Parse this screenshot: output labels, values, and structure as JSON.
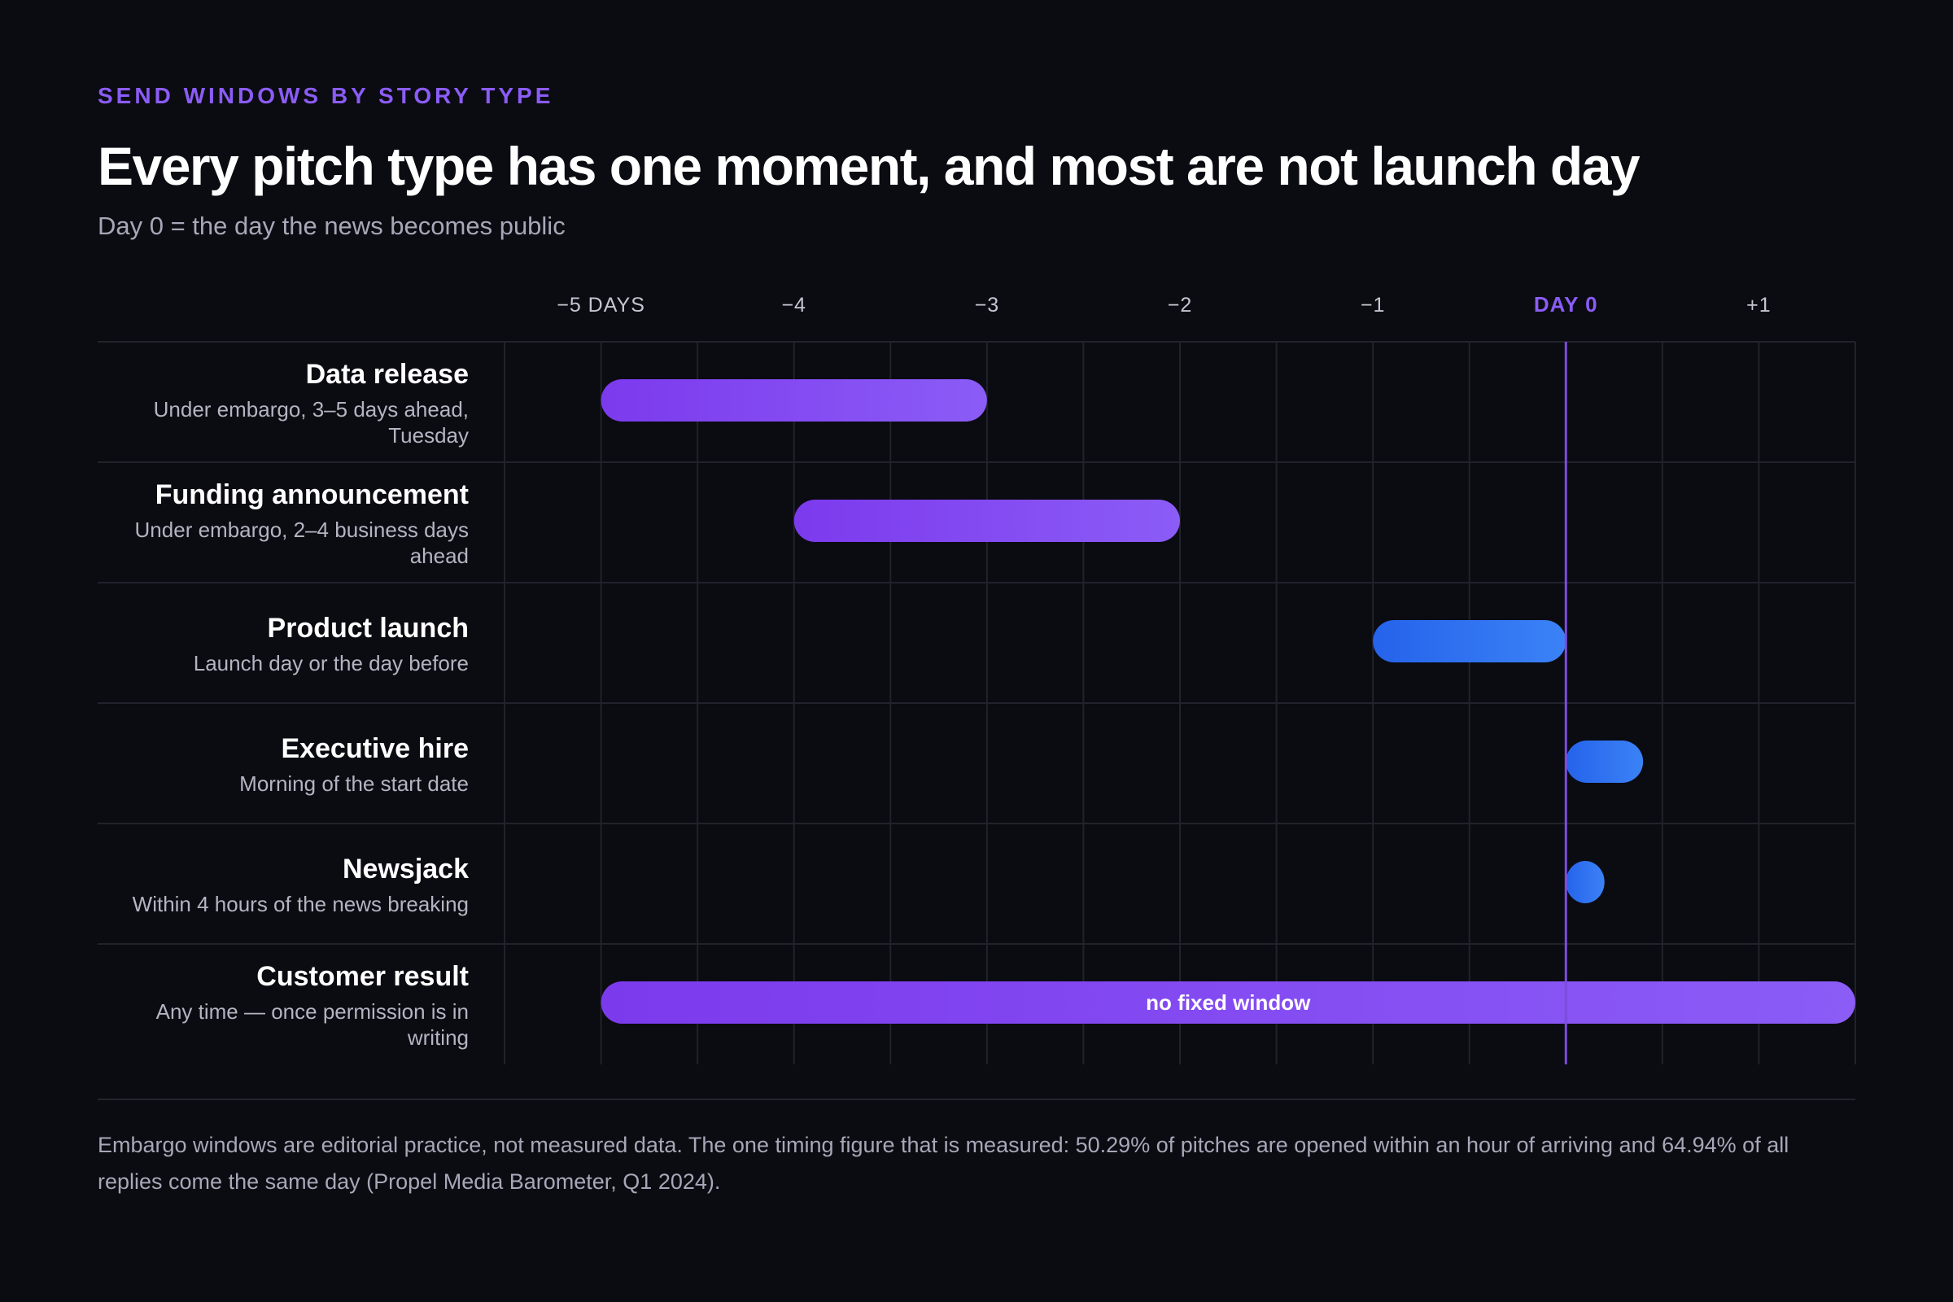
{
  "header": {
    "eyebrow": "SEND WINDOWS BY STORY TYPE",
    "title": "Every pitch type has one moment, and most are not launch day",
    "subtitle": "Day 0 = the day the news becomes public"
  },
  "footnote": "Embargo windows are editorial practice, not measured data. The one timing figure that is measured: 50.29% of pitches are opened within an hour of arriving and 64.94% of all replies come the same day (Propel Media Barometer, Q1 2024).",
  "colors": {
    "purple_start": "#7c3aed",
    "purple_end": "#8b5cf6",
    "blue_start": "#2563eb",
    "blue_end": "#3b82f6",
    "day0_line": "#7c4ddc",
    "accent": "#8b5cf6"
  },
  "chart_data": {
    "type": "bar",
    "orientation": "horizontal-range",
    "xlim": [
      -5.5,
      1.5
    ],
    "ticks": [
      {
        "value": -5,
        "label": "−5 DAYS"
      },
      {
        "value": -4,
        "label": "−4"
      },
      {
        "value": -3,
        "label": "−3"
      },
      {
        "value": -2,
        "label": "−2"
      },
      {
        "value": -1,
        "label": "−1"
      },
      {
        "value": 0,
        "label": "DAY 0"
      },
      {
        "value": 1,
        "label": "+1"
      }
    ],
    "reference_line": {
      "x": 0
    },
    "grid": true,
    "rows": [
      {
        "label": "Data release",
        "sublabel_lines": [
          "Under embargo, 3–5 days ahead,",
          "Tuesday"
        ],
        "start": -5,
        "end": -3,
        "color": "purple",
        "bar_text": ""
      },
      {
        "label": "Funding announcement",
        "sublabel_lines": [
          "Under embargo, 2–4 business days",
          "ahead"
        ],
        "start": -4,
        "end": -2,
        "color": "purple",
        "bar_text": ""
      },
      {
        "label": "Product launch",
        "sublabel_lines": [
          "Launch day or the day before"
        ],
        "start": -1,
        "end": 0,
        "color": "blue",
        "bar_text": ""
      },
      {
        "label": "Executive hire",
        "sublabel_lines": [
          "Morning of the start date"
        ],
        "start": 0,
        "end": 0.4,
        "color": "blue",
        "bar_text": ""
      },
      {
        "label": "Newsjack",
        "sublabel_lines": [
          "Within 4 hours of the news breaking"
        ],
        "start": 0,
        "end": 0.2,
        "color": "blue",
        "bar_text": ""
      },
      {
        "label": "Customer result",
        "sublabel_lines": [
          "Any time — once permission is in",
          "writing"
        ],
        "start": -5,
        "end": 1.5,
        "color": "purple",
        "bar_text": "no fixed window"
      }
    ]
  }
}
